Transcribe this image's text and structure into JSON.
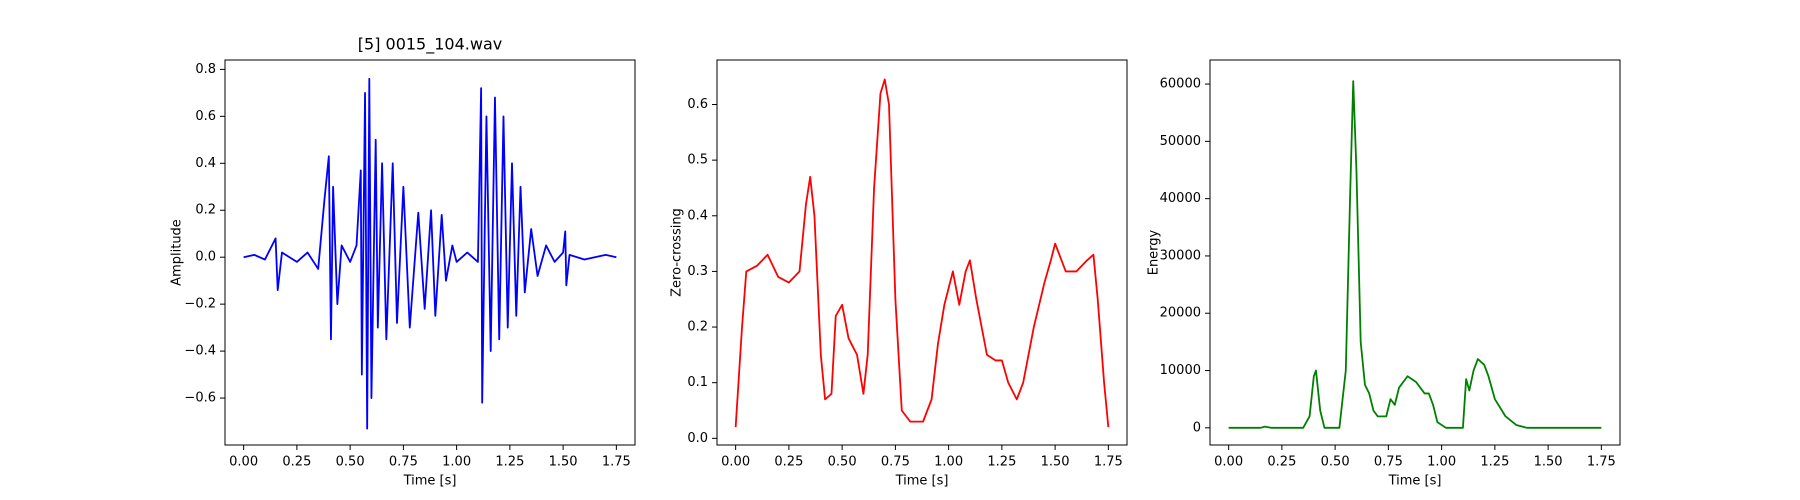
{
  "chart_data": [
    {
      "type": "line",
      "title": "[5] 0015_104.wav",
      "xlabel": "Time [s]",
      "ylabel": "Amplitude",
      "xlim": [
        -0.0875,
        1.8375
      ],
      "ylim": [
        -0.8,
        0.84
      ],
      "xticks": [
        {
          "value": 0,
          "label": "0.00"
        },
        {
          "value": 0.25,
          "label": "0.25"
        },
        {
          "value": 0.5,
          "label": "0.50"
        },
        {
          "value": 0.75,
          "label": "0.75"
        },
        {
          "value": 1,
          "label": "1.00"
        },
        {
          "value": 1.25,
          "label": "1.25"
        },
        {
          "value": 1.5,
          "label": "1.50"
        },
        {
          "value": 1.75,
          "label": "1.75"
        }
      ],
      "yticks": [
        {
          "value": -0.6,
          "label": "−0.6"
        },
        {
          "value": -0.4,
          "label": "−0.4"
        },
        {
          "value": -0.2,
          "label": "−0.2"
        },
        {
          "value": 0,
          "label": "0.0"
        },
        0.2,
        0.4,
        0.6,
        0.8
      ],
      "x": [
        0,
        0.05,
        0.1,
        0.15,
        0.16,
        0.18,
        0.25,
        0.3,
        0.35,
        0.38,
        0.4,
        0.41,
        0.42,
        0.44,
        0.46,
        0.5,
        0.53,
        0.55,
        0.555,
        0.57,
        0.58,
        0.59,
        0.6,
        0.62,
        0.63,
        0.65,
        0.67,
        0.7,
        0.72,
        0.75,
        0.78,
        0.82,
        0.85,
        0.88,
        0.9,
        0.93,
        0.95,
        0.98,
        1,
        1.05,
        1.1,
        1.115,
        1.12,
        1.14,
        1.16,
        1.18,
        1.2,
        1.22,
        1.24,
        1.26,
        1.28,
        1.3,
        1.32,
        1.35,
        1.38,
        1.42,
        1.46,
        1.5,
        1.51,
        1.515,
        1.53,
        1.6,
        1.7,
        1.75
      ],
      "series": [
        {
          "color": "#0000ff",
          "values": [
            0,
            0.01,
            -0.01,
            0.08,
            -0.14,
            0.02,
            -0.02,
            0.02,
            -0.05,
            0.25,
            0.43,
            -0.35,
            0.3,
            -0.2,
            0.05,
            -0.02,
            0.05,
            0.37,
            -0.5,
            0.7,
            -0.73,
            0.76,
            -0.6,
            0.5,
            -0.3,
            0.4,
            -0.35,
            0.4,
            -0.28,
            0.3,
            -0.3,
            0.19,
            -0.22,
            0.2,
            -0.25,
            0.18,
            -0.1,
            0.05,
            -0.02,
            0.02,
            -0.02,
            0.72,
            -0.62,
            0.6,
            -0.4,
            0.68,
            -0.35,
            0.6,
            -0.3,
            0.4,
            -0.25,
            0.3,
            -0.15,
            0.12,
            -0.08,
            0.05,
            -0.02,
            0.02,
            0.11,
            -0.12,
            0.01,
            -0.01,
            0.01,
            0
          ]
        }
      ]
    },
    {
      "type": "line",
      "xlabel": "Time [s]",
      "ylabel": "Zero-crossing",
      "xlim": [
        -0.0875,
        1.8375
      ],
      "ylim": [
        -0.012,
        0.68
      ],
      "xticks": [
        {
          "value": 0,
          "label": "0.00"
        },
        {
          "value": 0.25,
          "label": "0.25"
        },
        {
          "value": 0.5,
          "label": "0.50"
        },
        {
          "value": 0.75,
          "label": "0.75"
        },
        {
          "value": 1,
          "label": "1.00"
        },
        {
          "value": 1.25,
          "label": "1.25"
        },
        {
          "value": 1.5,
          "label": "1.50"
        },
        {
          "value": 1.75,
          "label": "1.75"
        }
      ],
      "yticks": [
        {
          "value": 0,
          "label": "0.0"
        },
        0.1,
        0.2,
        0.3,
        0.4,
        0.5,
        0.6
      ],
      "x": [
        0,
        0.03,
        0.05,
        0.1,
        0.15,
        0.2,
        0.25,
        0.3,
        0.33,
        0.35,
        0.37,
        0.4,
        0.42,
        0.45,
        0.47,
        0.5,
        0.53,
        0.57,
        0.6,
        0.62,
        0.65,
        0.68,
        0.7,
        0.72,
        0.75,
        0.78,
        0.82,
        0.88,
        0.92,
        0.95,
        0.98,
        1,
        1.02,
        1.05,
        1.08,
        1.1,
        1.13,
        1.18,
        1.22,
        1.25,
        1.28,
        1.32,
        1.35,
        1.4,
        1.45,
        1.48,
        1.5,
        1.55,
        1.6,
        1.65,
        1.68,
        1.7,
        1.73,
        1.75
      ],
      "series": [
        {
          "color": "#ff0000",
          "values": [
            0.02,
            0.2,
            0.3,
            0.31,
            0.33,
            0.29,
            0.28,
            0.3,
            0.42,
            0.47,
            0.4,
            0.15,
            0.07,
            0.08,
            0.22,
            0.24,
            0.18,
            0.15,
            0.08,
            0.15,
            0.45,
            0.62,
            0.645,
            0.6,
            0.25,
            0.05,
            0.03,
            0.03,
            0.07,
            0.17,
            0.24,
            0.27,
            0.3,
            0.24,
            0.3,
            0.32,
            0.25,
            0.15,
            0.14,
            0.14,
            0.1,
            0.07,
            0.1,
            0.2,
            0.28,
            0.32,
            0.35,
            0.3,
            0.3,
            0.32,
            0.33,
            0.25,
            0.1,
            0.02
          ]
        }
      ]
    },
    {
      "type": "line",
      "xlabel": "Time [s]",
      "ylabel": "Energy",
      "xlim": [
        -0.0875,
        1.8375
      ],
      "ylim": [
        -3000,
        64200
      ],
      "xticks": [
        {
          "value": 0,
          "label": "0.00"
        },
        {
          "value": 0.25,
          "label": "0.25"
        },
        {
          "value": 0.5,
          "label": "0.50"
        },
        {
          "value": 0.75,
          "label": "0.75"
        },
        {
          "value": 1,
          "label": "1.00"
        },
        {
          "value": 1.25,
          "label": "1.25"
        },
        {
          "value": 1.5,
          "label": "1.50"
        },
        {
          "value": 1.75,
          "label": "1.75"
        }
      ],
      "yticks": [
        0,
        10000,
        20000,
        30000,
        40000,
        50000,
        60000
      ],
      "x": [
        0,
        0.15,
        0.17,
        0.2,
        0.35,
        0.38,
        0.4,
        0.41,
        0.43,
        0.45,
        0.52,
        0.55,
        0.57,
        0.585,
        0.6,
        0.62,
        0.64,
        0.66,
        0.68,
        0.7,
        0.74,
        0.76,
        0.78,
        0.8,
        0.84,
        0.88,
        0.92,
        0.94,
        0.96,
        0.98,
        1.02,
        1.1,
        1.115,
        1.13,
        1.15,
        1.17,
        1.2,
        1.22,
        1.25,
        1.3,
        1.35,
        1.4,
        1.75
      ],
      "series": [
        {
          "color": "#008000",
          "values": [
            0,
            0,
            200,
            0,
            0,
            2000,
            9000,
            10000,
            3000,
            0,
            0,
            10000,
            40000,
            60500,
            45000,
            15000,
            7500,
            6000,
            3000,
            2000,
            2000,
            5000,
            4000,
            7000,
            9000,
            8000,
            6000,
            6000,
            4000,
            1000,
            0,
            0,
            8500,
            6500,
            10000,
            12000,
            11000,
            9000,
            5000,
            2000,
            500,
            0,
            0
          ]
        }
      ]
    }
  ]
}
